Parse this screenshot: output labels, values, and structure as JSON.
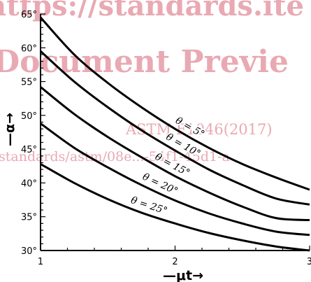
{
  "watermark": {
    "line1": "https://standards.ite",
    "line2": "Document Previe",
    "line3": "ASTM F1046(2017)",
    "line4": "standards/astm/08e...-54f1-45d1-a"
  },
  "chart_data": {
    "type": "line",
    "xlabel": "—μt→",
    "ylabel": "—α→",
    "xlim": [
      1,
      3
    ],
    "ylim": [
      30,
      65
    ],
    "x_ticks": [
      "1",
      "2",
      "3"
    ],
    "y_ticks": [
      "30°",
      "35°",
      "40°",
      "45°",
      "50°",
      "55°",
      "60°",
      "65°"
    ],
    "grid": false,
    "series": [
      {
        "name": "θ = 5°",
        "x": [
          1.0,
          1.25,
          1.5,
          1.75,
          2.0,
          2.25,
          2.5,
          2.75,
          3.0
        ],
        "y": [
          64.5,
          59.0,
          54.8,
          51.2,
          48.0,
          45.2,
          42.8,
          40.8,
          39.0
        ]
      },
      {
        "name": "θ = 10°",
        "x": [
          1.0,
          1.25,
          1.5,
          1.75,
          2.0,
          2.25,
          2.5,
          2.75,
          3.0
        ],
        "y": [
          59.5,
          55.0,
          51.2,
          47.8,
          44.8,
          42.0,
          39.7,
          37.7,
          36.8
        ]
      },
      {
        "name": "θ = 15°",
        "x": [
          1.0,
          1.25,
          1.5,
          1.75,
          2.0,
          2.25,
          2.5,
          2.75,
          3.0
        ],
        "y": [
          54.2,
          50.2,
          46.8,
          43.8,
          41.0,
          38.6,
          36.5,
          34.8,
          34.5
        ]
      },
      {
        "name": "θ = 20°",
        "x": [
          1.0,
          1.25,
          1.5,
          1.75,
          2.0,
          2.25,
          2.5,
          2.75,
          3.0
        ],
        "y": [
          48.8,
          45.2,
          42.3,
          39.7,
          37.4,
          35.5,
          34.0,
          32.8,
          32.3
        ]
      },
      {
        "name": "θ = 25°",
        "x": [
          1.0,
          1.25,
          1.5,
          1.75,
          2.0,
          2.25,
          2.5,
          2.75,
          3.0
        ],
        "y": [
          42.8,
          40.0,
          37.6,
          35.6,
          34.0,
          32.6,
          31.5,
          30.6,
          30.0
        ]
      }
    ]
  }
}
